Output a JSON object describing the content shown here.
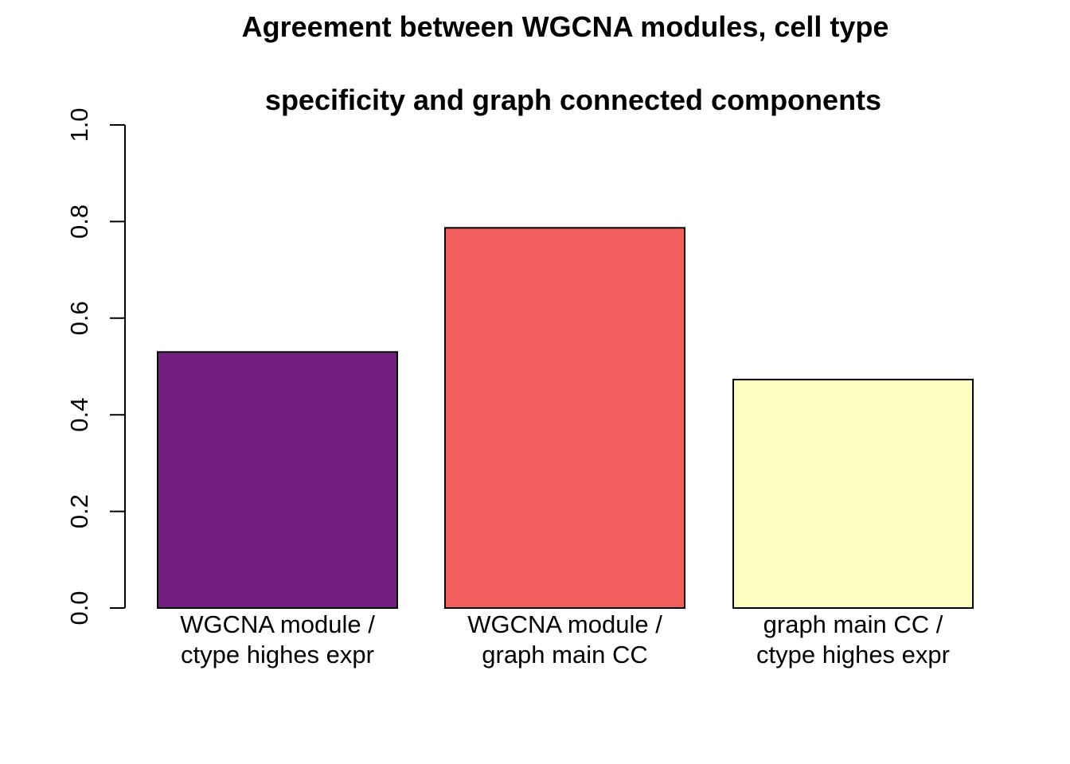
{
  "chart_data": {
    "type": "bar",
    "title_lines": [
      "Agreement between WGCNA modules, cell type",
      "specificity and graph connected components"
    ],
    "categories": [
      [
        "WGCNA module /",
        "ctype highes expr"
      ],
      [
        "WGCNA module /",
        "graph main CC"
      ],
      [
        "graph main CC /",
        "ctype highes expr"
      ]
    ],
    "values": [
      0.53,
      0.787,
      0.473
    ],
    "bar_colors": [
      "#721F81",
      "#F1605D",
      "#FCFDBF"
    ],
    "bar_border_color": "#000000",
    "ylim": [
      0,
      1
    ],
    "yticks": [
      0,
      0.2,
      0.4,
      0.6,
      0.8,
      1
    ],
    "ytick_labels": [
      "0.0",
      "0.2",
      "0.4",
      "0.6",
      "0.8",
      "1.0"
    ],
    "xlabel": "",
    "ylabel": "",
    "grid": false,
    "legend": false
  }
}
